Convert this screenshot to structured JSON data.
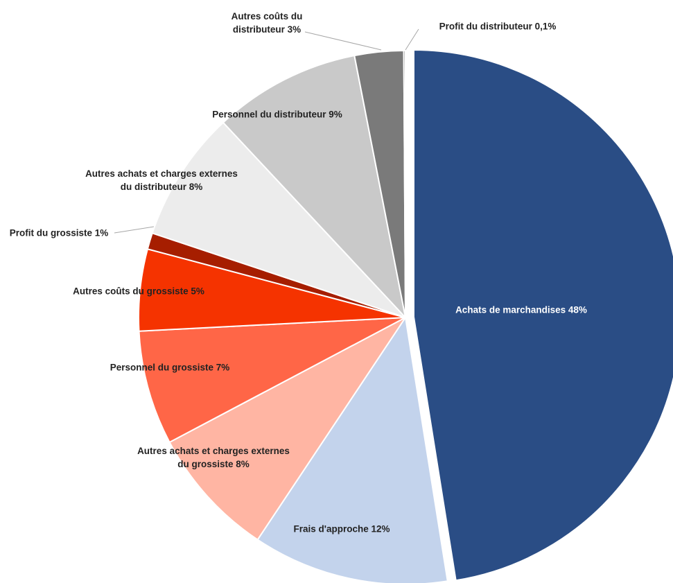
{
  "chart_data": {
    "type": "pie",
    "categories": [
      "Achats de marchandises",
      "Frais d'approche",
      "Autres achats et charges externes du grossiste",
      "Personnel du grossiste",
      "Autres coûts du grossiste",
      "Profit du grossiste",
      "Autres achats et charges externes du distributeur",
      "Personnel du distributeur",
      "Autres coûts du distributeur",
      "Profit du distributeur"
    ],
    "values": [
      48,
      12,
      8,
      7,
      5,
      1,
      8,
      9,
      3,
      0.1
    ],
    "value_labels": [
      "48%",
      "12%",
      "8%",
      "7%",
      "5%",
      "1%",
      "8%",
      "9%",
      "3%",
      "0,1%"
    ],
    "colors": [
      "#2a4d85",
      "#c3d3ec",
      "#ffb5a3",
      "#ff6647",
      "#f53300",
      "#a61e00",
      "#ececec",
      "#c9c9c9",
      "#7a7a7a",
      "#555555"
    ]
  }
}
